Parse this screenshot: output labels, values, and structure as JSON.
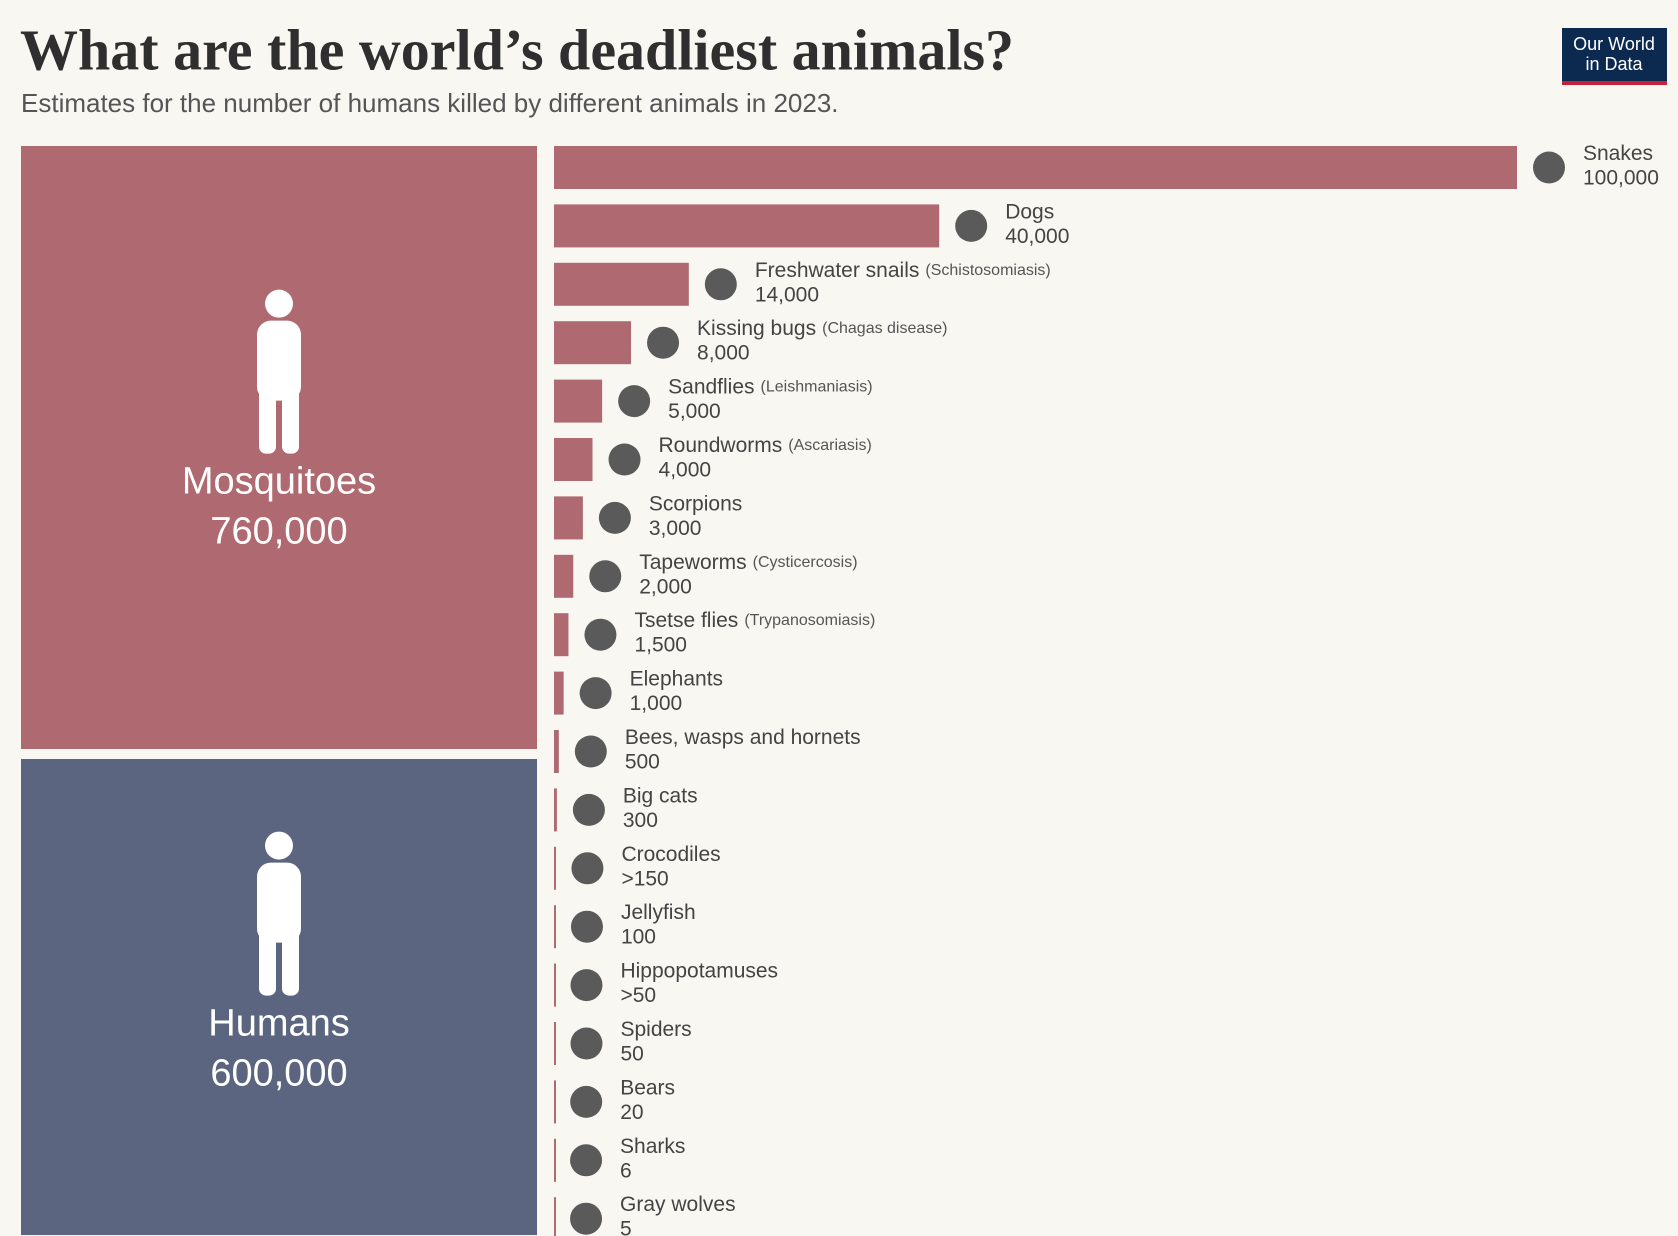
{
  "chart_data": {
    "type": "bar",
    "title": "What are the world’s deadliest animals?",
    "subtitle": "Estimates for the number of humans killed by different animals in 2023.",
    "logo": [
      "Our World",
      "in Data"
    ],
    "color": "#ae6a70",
    "highlights": [
      {
        "name": "Mosquitoes",
        "value": 760000,
        "value_label": "760,000",
        "color": "#ae6a70"
      },
      {
        "name": "Humans",
        "value": 600000,
        "value_label": "600,000",
        "color": "#5b6580"
      }
    ],
    "categories": [
      "Snakes",
      "Dogs",
      "Freshwater snails",
      "Kissing bugs",
      "Sandflies",
      "Roundworms",
      "Scorpions",
      "Tapeworms",
      "Tsetse flies",
      "Elephants",
      "Bees, wasps and hornets",
      "Big cats",
      "Crocodiles",
      "Jellyfish",
      "Hippopotamuses",
      "Spiders",
      "Bears",
      "Sharks",
      "Gray wolves"
    ],
    "notes": [
      null,
      null,
      "(Schistosomiasis)",
      "(Chagas disease)",
      "(Leishmaniasis)",
      "(Ascariasis)",
      null,
      "(Cysticercosis)",
      "(Trypanosomiasis)",
      null,
      null,
      null,
      null,
      null,
      null,
      null,
      null,
      null,
      null
    ],
    "values": [
      100000,
      40000,
      14000,
      8000,
      5000,
      4000,
      3000,
      2000,
      1500,
      1000,
      500,
      300,
      150,
      100,
      50,
      50,
      20,
      6,
      5
    ],
    "value_labels": [
      "100,000",
      "40,000",
      "14,000",
      "8,000",
      "5,000",
      "4,000",
      "3,000",
      "2,000",
      "1,500",
      "1,000",
      "500",
      "300",
      ">150",
      "100",
      ">50",
      "50",
      "20",
      "6",
      "5"
    ]
  }
}
